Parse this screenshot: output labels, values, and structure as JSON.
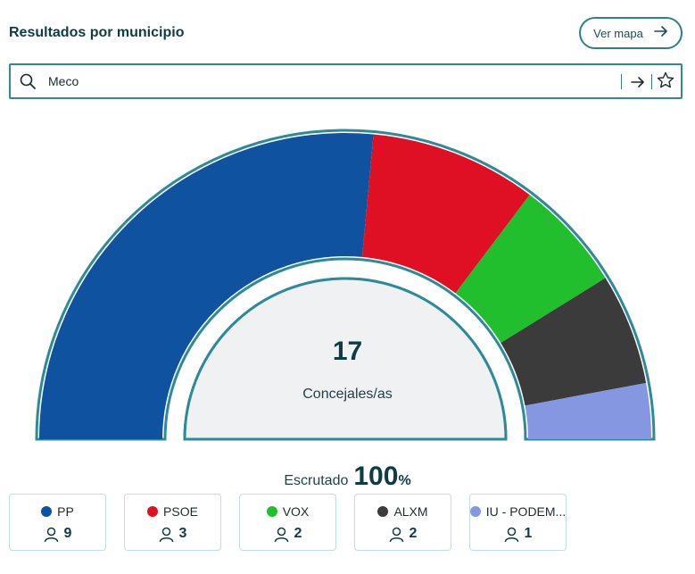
{
  "header": {
    "title": "Resultados por municipio",
    "map_button_label": "Ver mapa"
  },
  "search": {
    "value": "Meco"
  },
  "summary": {
    "total_seats": "17",
    "total_label": "Concejales/as",
    "scrutinized_label": "Escrutado",
    "scrutinized_value": "100",
    "scrutinized_unit": "%"
  },
  "parties": [
    {
      "name": "PP",
      "seats": 9,
      "color": "#0f53a0"
    },
    {
      "name": "PSOE",
      "seats": 3,
      "color": "#e01024"
    },
    {
      "name": "VOX",
      "seats": 2,
      "color": "#21be2e"
    },
    {
      "name": "ALXM",
      "seats": 2,
      "color": "#3b3b3b"
    },
    {
      "name": "IU - PODEM...",
      "seats": 1,
      "color": "#8597e0"
    }
  ],
  "chart_data": {
    "type": "pie",
    "title": "",
    "categories": [
      "PP",
      "PSOE",
      "VOX",
      "ALXM",
      "IU - PODEMOS"
    ],
    "values": [
      9,
      3,
      2,
      2,
      1
    ],
    "colors": [
      "#0f53a0",
      "#e01024",
      "#21be2e",
      "#3b3b3b",
      "#8597e0"
    ],
    "total": 17,
    "shape": "half-donut"
  }
}
